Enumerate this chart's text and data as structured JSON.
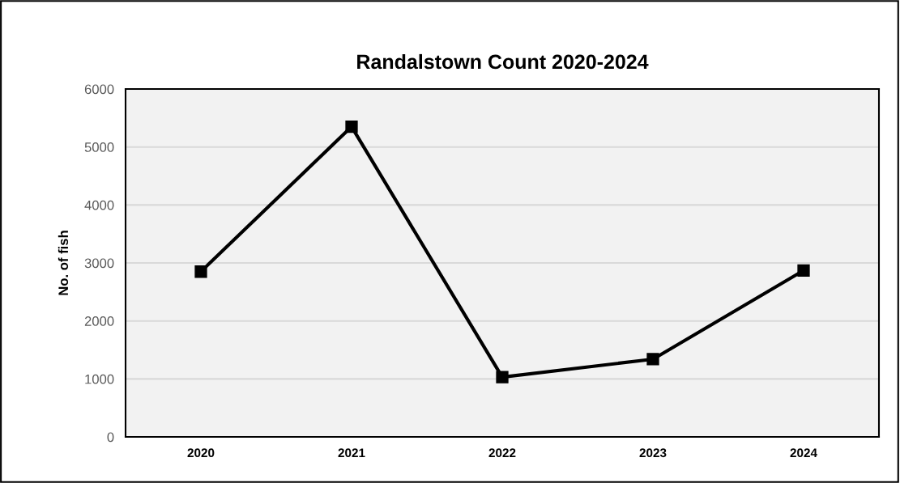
{
  "chart_data": {
    "type": "line",
    "title": "Randalstown Count 2020-2024",
    "ylabel": "No. of fish",
    "categories": [
      "2020",
      "2021",
      "2022",
      "2023",
      "2024"
    ],
    "series": [
      {
        "color": "#000000",
        "values": [
          2850,
          5350,
          1030,
          1340,
          2870
        ]
      }
    ],
    "ylim": [
      0,
      6000
    ],
    "yticks": [
      0,
      1000,
      2000,
      3000,
      4000,
      5000,
      6000
    ],
    "grid": "y",
    "marker": "square",
    "line_style": "solid"
  }
}
